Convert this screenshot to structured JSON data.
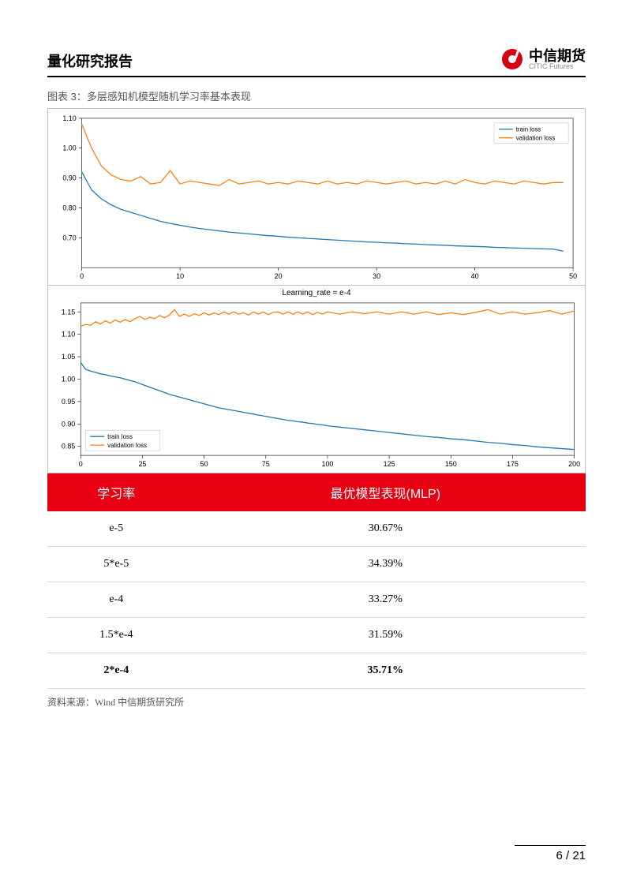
{
  "header": {
    "title": "量化研究报告",
    "logo_cn": "中信期货",
    "logo_en": "CITIC Futures",
    "logo_red": "#d7000f"
  },
  "caption": "图表 3：多层感知机模型随机学习率基本表现",
  "chart1": {
    "type": "line",
    "xlim": [
      0,
      50
    ],
    "ylim": [
      0.6,
      1.1
    ],
    "xticks": [
      0,
      10,
      20,
      30,
      40,
      50
    ],
    "yticks": [
      0.7,
      0.8,
      0.9,
      1.0,
      1.1
    ],
    "legend_pos": "top-right",
    "legend": [
      "train loss",
      "validation loss"
    ],
    "colors": {
      "train": "#1f77b4",
      "validation": "#ff7f0e",
      "border": "#bfbfbf",
      "tick": "#000000"
    },
    "font_size": 9,
    "train": [
      [
        0,
        0.92
      ],
      [
        1,
        0.86
      ],
      [
        2,
        0.83
      ],
      [
        3,
        0.81
      ],
      [
        4,
        0.795
      ],
      [
        5,
        0.785
      ],
      [
        6,
        0.775
      ],
      [
        7,
        0.765
      ],
      [
        8,
        0.755
      ],
      [
        9,
        0.748
      ],
      [
        10,
        0.742
      ],
      [
        11,
        0.736
      ],
      [
        12,
        0.731
      ],
      [
        13,
        0.727
      ],
      [
        14,
        0.723
      ],
      [
        15,
        0.719
      ],
      [
        16,
        0.716
      ],
      [
        17,
        0.713
      ],
      [
        18,
        0.71
      ],
      [
        19,
        0.707
      ],
      [
        20,
        0.705
      ],
      [
        21,
        0.702
      ],
      [
        22,
        0.7
      ],
      [
        23,
        0.698
      ],
      [
        24,
        0.696
      ],
      [
        25,
        0.694
      ],
      [
        26,
        0.692
      ],
      [
        27,
        0.69
      ],
      [
        28,
        0.688
      ],
      [
        29,
        0.686
      ],
      [
        30,
        0.685
      ],
      [
        31,
        0.683
      ],
      [
        32,
        0.682
      ],
      [
        33,
        0.68
      ],
      [
        34,
        0.679
      ],
      [
        35,
        0.677
      ],
      [
        36,
        0.676
      ],
      [
        37,
        0.675
      ],
      [
        38,
        0.673
      ],
      [
        39,
        0.672
      ],
      [
        40,
        0.671
      ],
      [
        41,
        0.67
      ],
      [
        42,
        0.668
      ],
      [
        43,
        0.667
      ],
      [
        44,
        0.666
      ],
      [
        45,
        0.665
      ],
      [
        46,
        0.664
      ],
      [
        47,
        0.663
      ],
      [
        48,
        0.662
      ],
      [
        49,
        0.655
      ]
    ],
    "validation": [
      [
        0,
        1.08
      ],
      [
        1,
        1.0
      ],
      [
        2,
        0.94
      ],
      [
        3,
        0.91
      ],
      [
        4,
        0.895
      ],
      [
        5,
        0.89
      ],
      [
        6,
        0.905
      ],
      [
        7,
        0.88
      ],
      [
        8,
        0.885
      ],
      [
        9,
        0.925
      ],
      [
        10,
        0.88
      ],
      [
        11,
        0.89
      ],
      [
        12,
        0.885
      ],
      [
        13,
        0.88
      ],
      [
        14,
        0.875
      ],
      [
        15,
        0.895
      ],
      [
        16,
        0.88
      ],
      [
        17,
        0.885
      ],
      [
        18,
        0.89
      ],
      [
        19,
        0.88
      ],
      [
        20,
        0.885
      ],
      [
        21,
        0.88
      ],
      [
        22,
        0.89
      ],
      [
        23,
        0.885
      ],
      [
        24,
        0.88
      ],
      [
        25,
        0.89
      ],
      [
        26,
        0.88
      ],
      [
        27,
        0.885
      ],
      [
        28,
        0.88
      ],
      [
        29,
        0.89
      ],
      [
        30,
        0.885
      ],
      [
        31,
        0.88
      ],
      [
        32,
        0.885
      ],
      [
        33,
        0.89
      ],
      [
        34,
        0.88
      ],
      [
        35,
        0.885
      ],
      [
        36,
        0.88
      ],
      [
        37,
        0.89
      ],
      [
        38,
        0.88
      ],
      [
        39,
        0.895
      ],
      [
        40,
        0.885
      ],
      [
        41,
        0.88
      ],
      [
        42,
        0.89
      ],
      [
        43,
        0.885
      ],
      [
        44,
        0.88
      ],
      [
        45,
        0.89
      ],
      [
        46,
        0.885
      ],
      [
        47,
        0.88
      ],
      [
        48,
        0.885
      ],
      [
        49,
        0.885
      ]
    ]
  },
  "chart2": {
    "type": "line",
    "title": "Learning_rate = e-4",
    "xlim": [
      0,
      200
    ],
    "ylim": [
      0.83,
      1.17
    ],
    "xticks": [
      0,
      25,
      50,
      75,
      100,
      125,
      150,
      175,
      200
    ],
    "yticks": [
      0.85,
      0.9,
      0.95,
      1.0,
      1.05,
      1.1,
      1.15
    ],
    "legend_pos": "bottom-left",
    "legend": [
      "train loss",
      "validation loss"
    ],
    "colors": {
      "train": "#1f77b4",
      "validation": "#ff7f0e",
      "border": "#bfbfbf",
      "tick": "#000000"
    },
    "font_size": 9,
    "train": [
      [
        0,
        1.037
      ],
      [
        2,
        1.022
      ],
      [
        4,
        1.018
      ],
      [
        6,
        1.015
      ],
      [
        8,
        1.012
      ],
      [
        10,
        1.01
      ],
      [
        12,
        1.007
      ],
      [
        14,
        1.005
      ],
      [
        16,
        1.003
      ],
      [
        18,
        1.0
      ],
      [
        20,
        0.997
      ],
      [
        22,
        0.994
      ],
      [
        24,
        0.99
      ],
      [
        26,
        0.986
      ],
      [
        28,
        0.982
      ],
      [
        30,
        0.978
      ],
      [
        32,
        0.974
      ],
      [
        34,
        0.97
      ],
      [
        36,
        0.966
      ],
      [
        38,
        0.963
      ],
      [
        40,
        0.96
      ],
      [
        42,
        0.957
      ],
      [
        44,
        0.954
      ],
      [
        46,
        0.951
      ],
      [
        48,
        0.948
      ],
      [
        50,
        0.945
      ],
      [
        52,
        0.942
      ],
      [
        54,
        0.939
      ],
      [
        56,
        0.936
      ],
      [
        58,
        0.934
      ],
      [
        60,
        0.932
      ],
      [
        62,
        0.93
      ],
      [
        64,
        0.928
      ],
      [
        66,
        0.926
      ],
      [
        68,
        0.924
      ],
      [
        70,
        0.922
      ],
      [
        72,
        0.92
      ],
      [
        74,
        0.918
      ],
      [
        76,
        0.916
      ],
      [
        78,
        0.914
      ],
      [
        80,
        0.912
      ],
      [
        82,
        0.91
      ],
      [
        84,
        0.908
      ],
      [
        86,
        0.907
      ],
      [
        88,
        0.905
      ],
      [
        90,
        0.904
      ],
      [
        92,
        0.902
      ],
      [
        94,
        0.901
      ],
      [
        96,
        0.899
      ],
      [
        98,
        0.898
      ],
      [
        100,
        0.896
      ],
      [
        105,
        0.893
      ],
      [
        110,
        0.89
      ],
      [
        115,
        0.887
      ],
      [
        120,
        0.884
      ],
      [
        125,
        0.881
      ],
      [
        130,
        0.878
      ],
      [
        135,
        0.875
      ],
      [
        140,
        0.872
      ],
      [
        145,
        0.87
      ],
      [
        150,
        0.867
      ],
      [
        155,
        0.865
      ],
      [
        160,
        0.862
      ],
      [
        165,
        0.859
      ],
      [
        170,
        0.857
      ],
      [
        175,
        0.854
      ],
      [
        180,
        0.852
      ],
      [
        185,
        0.849
      ],
      [
        190,
        0.847
      ],
      [
        195,
        0.845
      ],
      [
        200,
        0.843
      ]
    ],
    "validation": [
      [
        0,
        1.118
      ],
      [
        2,
        1.122
      ],
      [
        4,
        1.12
      ],
      [
        6,
        1.128
      ],
      [
        8,
        1.123
      ],
      [
        10,
        1.13
      ],
      [
        12,
        1.125
      ],
      [
        14,
        1.132
      ],
      [
        16,
        1.127
      ],
      [
        18,
        1.133
      ],
      [
        20,
        1.128
      ],
      [
        22,
        1.135
      ],
      [
        24,
        1.14
      ],
      [
        26,
        1.133
      ],
      [
        28,
        1.138
      ],
      [
        30,
        1.135
      ],
      [
        32,
        1.142
      ],
      [
        34,
        1.137
      ],
      [
        36,
        1.143
      ],
      [
        38,
        1.155
      ],
      [
        40,
        1.14
      ],
      [
        42,
        1.145
      ],
      [
        44,
        1.14
      ],
      [
        46,
        1.146
      ],
      [
        48,
        1.142
      ],
      [
        50,
        1.148
      ],
      [
        52,
        1.143
      ],
      [
        54,
        1.148
      ],
      [
        56,
        1.144
      ],
      [
        58,
        1.15
      ],
      [
        60,
        1.145
      ],
      [
        62,
        1.15
      ],
      [
        64,
        1.145
      ],
      [
        66,
        1.148
      ],
      [
        68,
        1.143
      ],
      [
        70,
        1.15
      ],
      [
        72,
        1.145
      ],
      [
        74,
        1.15
      ],
      [
        76,
        1.144
      ],
      [
        78,
        1.149
      ],
      [
        80,
        1.15
      ],
      [
        82,
        1.145
      ],
      [
        84,
        1.15
      ],
      [
        86,
        1.145
      ],
      [
        88,
        1.15
      ],
      [
        90,
        1.145
      ],
      [
        92,
        1.15
      ],
      [
        94,
        1.144
      ],
      [
        96,
        1.149
      ],
      [
        98,
        1.145
      ],
      [
        100,
        1.15
      ],
      [
        105,
        1.145
      ],
      [
        110,
        1.15
      ],
      [
        115,
        1.146
      ],
      [
        120,
        1.15
      ],
      [
        125,
        1.145
      ],
      [
        130,
        1.15
      ],
      [
        135,
        1.145
      ],
      [
        140,
        1.15
      ],
      [
        145,
        1.144
      ],
      [
        150,
        1.148
      ],
      [
        155,
        1.144
      ],
      [
        160,
        1.149
      ],
      [
        165,
        1.155
      ],
      [
        170,
        1.145
      ],
      [
        175,
        1.15
      ],
      [
        180,
        1.145
      ],
      [
        185,
        1.148
      ],
      [
        190,
        1.153
      ],
      [
        195,
        1.145
      ],
      [
        200,
        1.152
      ]
    ]
  },
  "table": {
    "header_bg": "#e60012",
    "header_color": "#ffffff",
    "columns": [
      "学习率",
      "最优模型表现(MLP)"
    ],
    "rows": [
      {
        "lr": "e-5",
        "perf": "30.67%",
        "bold": false
      },
      {
        "lr": "5*e-5",
        "perf": "34.39%",
        "bold": false
      },
      {
        "lr": "e-4",
        "perf": "33.27%",
        "bold": false
      },
      {
        "lr": "1.5*e-4",
        "perf": "31.59%",
        "bold": false
      },
      {
        "lr": "2*e-4",
        "perf": "35.71%",
        "bold": true
      }
    ]
  },
  "source": "资料来源：Wind   中信期货研究所",
  "footer": {
    "page": "6",
    "sep": " / ",
    "total": "21"
  }
}
